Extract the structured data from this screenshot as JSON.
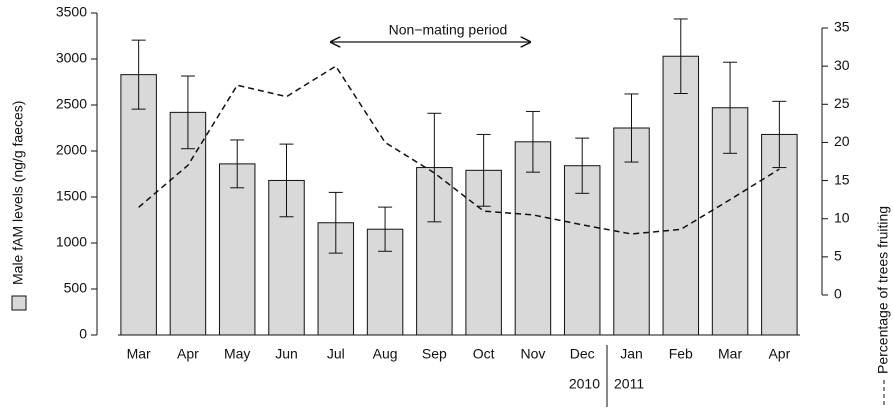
{
  "chart_data": {
    "type": "bar",
    "annotation": "Non−mating period",
    "y_label": "Male fAM levels (ng/g faeces)",
    "y2_label": "Percentage of trees fruiting",
    "years": [
      "2010",
      "2011"
    ],
    "categories": [
      "Mar",
      "Apr",
      "May",
      "Jun",
      "Jul",
      "Aug",
      "Sep",
      "Oct",
      "Nov",
      "Dec",
      "Jan",
      "Feb",
      "Mar",
      "Apr"
    ],
    "series": [
      {
        "type": "bar",
        "color": "#d9d9d9",
        "values": [
          2830,
          2420,
          1860,
          1680,
          1220,
          1150,
          1820,
          1790,
          2100,
          1840,
          2250,
          3030,
          2470,
          2180
        ],
        "errors": [
          375,
          395,
          260,
          395,
          330,
          240,
          590,
          390,
          330,
          300,
          370,
          405,
          495,
          360
        ]
      },
      {
        "type": "line",
        "axis": "y2",
        "color": "#111111",
        "dashed": true,
        "values": [
          11.5,
          17,
          27.5,
          26,
          30,
          20,
          16,
          11,
          10.5,
          9.2,
          8,
          8.6,
          12.5,
          16.5
        ]
      }
    ],
    "ylim": [
      0,
      3500
    ],
    "yticks": [
      0,
      500,
      1000,
      1500,
      2000,
      2500,
      3000,
      3500
    ],
    "y2lim": [
      0,
      35
    ],
    "y2ticks": [
      0,
      5,
      10,
      15,
      20,
      25,
      30,
      35
    ]
  }
}
